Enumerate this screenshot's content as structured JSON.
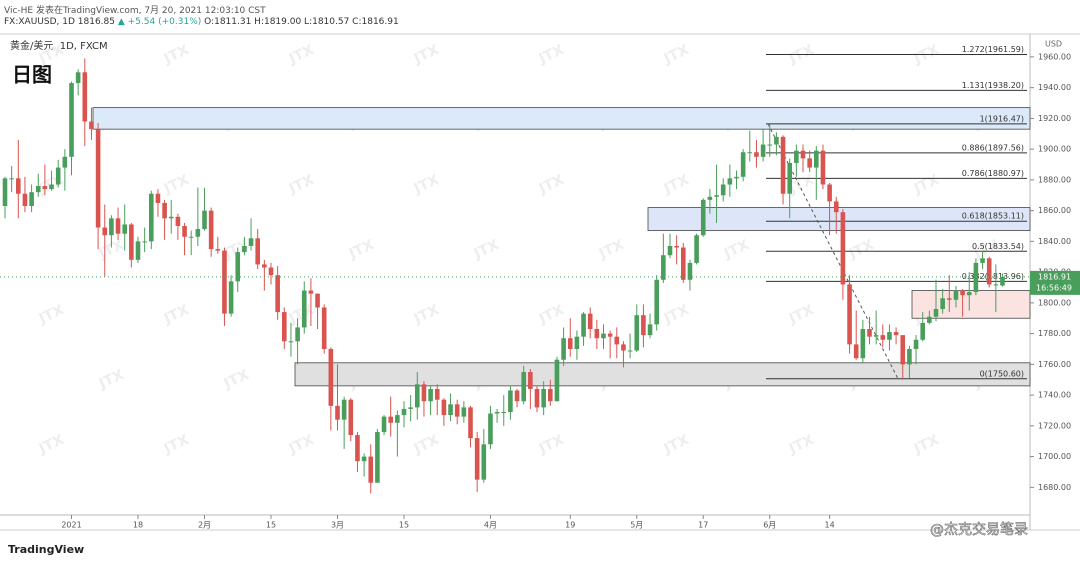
{
  "header": {
    "publisher": "Vic-HE 发表在TradingView.com, 7月 20, 2021 12:03:10 CST",
    "symbol": "FX:XAUUSD, 1D",
    "price": "1816.85",
    "change": "▲ +5.54 (+0.31%)",
    "ohlc": "O:1811.31 H:1819.00 L:1810.57 C:1816.91"
  },
  "footer": {
    "brand": "TradingView",
    "credit": "@杰克交易笔录"
  },
  "chart_data": {
    "type": "candlestick",
    "legend": "黄金/美元, 1D, FXCM",
    "tag": "日图",
    "watermark": "JTX",
    "currency": "USD",
    "up_color": "#4a9e5c",
    "down_color": "#d9534f",
    "ylim": [
      1662,
      1971
    ],
    "yticks": [
      {
        "value": 1680,
        "label": "1680.00"
      },
      {
        "value": 1700,
        "label": "1700.00"
      },
      {
        "value": 1720,
        "label": "1720.00"
      },
      {
        "value": 1740,
        "label": "1740.00"
      },
      {
        "value": 1760,
        "label": "1760.00"
      },
      {
        "value": 1780,
        "label": "1780.00"
      },
      {
        "value": 1800,
        "label": "1800.00"
      },
      {
        "value": 1820,
        "label": "1820.00"
      },
      {
        "value": 1840,
        "label": "1840.00"
      },
      {
        "value": 1860,
        "label": "1860.00"
      },
      {
        "value": 1880,
        "label": "1880.00"
      },
      {
        "value": 1900,
        "label": "1900.00"
      },
      {
        "value": 1920,
        "label": "1920.00"
      },
      {
        "value": 1940,
        "label": "1940.00"
      },
      {
        "value": 1960,
        "label": "1960.00"
      }
    ],
    "xticks": [
      {
        "value": 10,
        "label": "2021"
      },
      {
        "value": 20,
        "label": "18"
      },
      {
        "value": 30,
        "label": "2月"
      },
      {
        "value": 40,
        "label": "15"
      },
      {
        "value": 50,
        "label": "3月"
      },
      {
        "value": 60,
        "label": "15"
      },
      {
        "value": 73,
        "label": "4月"
      },
      {
        "value": 85,
        "label": "19"
      },
      {
        "value": 95,
        "label": "5月"
      },
      {
        "value": 105,
        "label": "17"
      },
      {
        "value": 115,
        "label": "6月"
      },
      {
        "value": 124,
        "label": "14"
      }
    ],
    "last_price": 1816.91,
    "countdown": "16:56:49",
    "zones": [
      {
        "range": [
          1913,
          1927
        ],
        "color": "#dbe9f8"
      },
      {
        "range": [
          1847,
          1862
        ],
        "color": "#dde6f8"
      },
      {
        "range": [
          1746,
          1761
        ],
        "color": "#e0e0e0"
      },
      {
        "range": [
          1790,
          1808
        ],
        "color": "#fbe3e1"
      }
    ],
    "fib": [
      {
        "value": 1961.59,
        "label": "1.272(1961.59)"
      },
      {
        "value": 1938.2,
        "label": "1.131(1938.20)"
      },
      {
        "value": 1916.47,
        "label": "1(1916.47)"
      },
      {
        "value": 1897.56,
        "label": "0.886(1897.56)"
      },
      {
        "value": 1880.97,
        "label": "0.786(1880.97)"
      },
      {
        "value": 1853.11,
        "label": "0.618(1853.11)"
      },
      {
        "value": 1833.54,
        "label": "0.5(1833.54)"
      },
      {
        "value": 1813.96,
        "label": "0.382(1813.96)"
      },
      {
        "value": 1750.6,
        "label": "0(1750.60)"
      }
    ],
    "ohlc": [
      [
        1863,
        1882,
        1855,
        1881
      ],
      [
        1881,
        1889,
        1872,
        1881
      ],
      [
        1881,
        1906,
        1855,
        1871
      ],
      [
        1871,
        1882,
        1859,
        1863
      ],
      [
        1863,
        1877,
        1859,
        1872
      ],
      [
        1872,
        1884,
        1869,
        1876
      ],
      [
        1876,
        1890,
        1870,
        1874
      ],
      [
        1874,
        1886,
        1873,
        1877
      ],
      [
        1877,
        1893,
        1875,
        1888
      ],
      [
        1888,
        1900,
        1873,
        1895
      ],
      [
        1895,
        1944,
        1883,
        1943
      ],
      [
        1943,
        1952,
        1935,
        1950
      ],
      [
        1950,
        1959,
        1902,
        1918
      ],
      [
        1918,
        1927,
        1906,
        1913
      ],
      [
        1913,
        1917,
        1835,
        1849
      ],
      [
        1849,
        1864,
        1817,
        1844
      ],
      [
        1844,
        1857,
        1836,
        1855
      ],
      [
        1855,
        1862,
        1841,
        1845
      ],
      [
        1845,
        1864,
        1834,
        1851
      ],
      [
        1851,
        1852,
        1823,
        1828
      ],
      [
        1828,
        1843,
        1826,
        1840
      ],
      [
        1840,
        1849,
        1833,
        1840
      ],
      [
        1840,
        1873,
        1835,
        1871
      ],
      [
        1871,
        1874,
        1856,
        1865
      ],
      [
        1865,
        1867,
        1841,
        1855
      ],
      [
        1855,
        1867,
        1845,
        1856
      ],
      [
        1856,
        1858,
        1841,
        1850
      ],
      [
        1850,
        1852,
        1831,
        1843
      ],
      [
        1843,
        1847,
        1831,
        1843
      ],
      [
        1843,
        1875,
        1837,
        1848
      ],
      [
        1848,
        1875,
        1847,
        1860
      ],
      [
        1860,
        1862,
        1830,
        1835
      ],
      [
        1835,
        1843,
        1832,
        1834
      ],
      [
        1834,
        1836,
        1785,
        1793
      ],
      [
        1793,
        1818,
        1791,
        1814
      ],
      [
        1814,
        1836,
        1807,
        1833
      ],
      [
        1833,
        1843,
        1831,
        1837
      ],
      [
        1837,
        1855,
        1834,
        1842
      ],
      [
        1842,
        1848,
        1822,
        1825
      ],
      [
        1825,
        1828,
        1808,
        1823
      ],
      [
        1823,
        1826,
        1812,
        1818
      ],
      [
        1818,
        1824,
        1789,
        1794
      ],
      [
        1794,
        1797,
        1770,
        1775
      ],
      [
        1775,
        1787,
        1765,
        1775
      ],
      [
        1775,
        1790,
        1760,
        1784
      ],
      [
        1784,
        1814,
        1780,
        1808
      ],
      [
        1808,
        1816,
        1785,
        1806
      ],
      [
        1806,
        1806,
        1783,
        1797
      ],
      [
        1797,
        1799,
        1767,
        1770
      ],
      [
        1770,
        1771,
        1717,
        1733
      ],
      [
        1733,
        1760,
        1717,
        1724
      ],
      [
        1724,
        1739,
        1705,
        1737
      ],
      [
        1737,
        1738,
        1710,
        1714
      ],
      [
        1714,
        1716,
        1690,
        1697
      ],
      [
        1697,
        1702,
        1687,
        1700
      ],
      [
        1700,
        1708,
        1676,
        1683
      ],
      [
        1683,
        1718,
        1683,
        1716
      ],
      [
        1716,
        1727,
        1714,
        1726
      ],
      [
        1726,
        1739,
        1713,
        1722
      ],
      [
        1722,
        1730,
        1700,
        1727
      ],
      [
        1727,
        1736,
        1719,
        1731
      ],
      [
        1731,
        1740,
        1723,
        1732
      ],
      [
        1732,
        1755,
        1724,
        1747
      ],
      [
        1747,
        1749,
        1726,
        1736
      ],
      [
        1736,
        1746,
        1727,
        1744
      ],
      [
        1744,
        1747,
        1727,
        1737
      ],
      [
        1737,
        1738,
        1720,
        1727
      ],
      [
        1727,
        1741,
        1723,
        1734
      ],
      [
        1734,
        1737,
        1721,
        1726
      ],
      [
        1726,
        1736,
        1722,
        1732
      ],
      [
        1732,
        1733,
        1706,
        1712
      ],
      [
        1712,
        1716,
        1677,
        1685
      ],
      [
        1685,
        1718,
        1683,
        1708
      ],
      [
        1708,
        1733,
        1705,
        1728
      ],
      [
        1728,
        1731,
        1722,
        1729
      ],
      [
        1729,
        1740,
        1720,
        1729
      ],
      [
        1729,
        1746,
        1724,
        1743
      ],
      [
        1743,
        1744,
        1732,
        1736
      ],
      [
        1736,
        1759,
        1734,
        1755
      ],
      [
        1755,
        1757,
        1731,
        1744
      ],
      [
        1744,
        1746,
        1729,
        1732
      ],
      [
        1732,
        1749,
        1727,
        1744
      ],
      [
        1744,
        1750,
        1733,
        1736
      ],
      [
        1736,
        1765,
        1736,
        1763
      ],
      [
        1763,
        1784,
        1759,
        1777
      ],
      [
        1777,
        1790,
        1765,
        1770
      ],
      [
        1770,
        1782,
        1763,
        1778
      ],
      [
        1778,
        1794,
        1772,
        1793
      ],
      [
        1793,
        1797,
        1777,
        1783
      ],
      [
        1783,
        1789,
        1770,
        1777
      ],
      [
        1777,
        1786,
        1770,
        1780
      ],
      [
        1780,
        1782,
        1764,
        1778
      ],
      [
        1778,
        1784,
        1764,
        1773
      ],
      [
        1773,
        1775,
        1758,
        1769
      ],
      [
        1769,
        1780,
        1764,
        1769
      ],
      [
        1769,
        1799,
        1768,
        1792
      ],
      [
        1792,
        1799,
        1771,
        1779
      ],
      [
        1779,
        1793,
        1777,
        1786
      ],
      [
        1786,
        1818,
        1782,
        1815
      ],
      [
        1815,
        1845,
        1813,
        1831
      ],
      [
        1831,
        1845,
        1829,
        1837
      ],
      [
        1837,
        1844,
        1825,
        1836
      ],
      [
        1836,
        1839,
        1813,
        1815
      ],
      [
        1815,
        1828,
        1808,
        1826
      ],
      [
        1826,
        1845,
        1825,
        1844
      ],
      [
        1844,
        1868,
        1843,
        1867
      ],
      [
        1867,
        1874,
        1858,
        1869
      ],
      [
        1869,
        1890,
        1852,
        1870
      ],
      [
        1870,
        1881,
        1866,
        1877
      ],
      [
        1877,
        1890,
        1869,
        1881
      ],
      [
        1881,
        1886,
        1874,
        1882
      ],
      [
        1882,
        1900,
        1879,
        1898
      ],
      [
        1898,
        1912,
        1892,
        1898
      ],
      [
        1898,
        1906,
        1888,
        1895
      ],
      [
        1895,
        1913,
        1892,
        1903
      ],
      [
        1903,
        1916,
        1895,
        1903
      ],
      [
        1903,
        1911,
        1896,
        1908
      ],
      [
        1908,
        1909,
        1864,
        1871
      ],
      [
        1871,
        1894,
        1855,
        1891
      ],
      [
        1891,
        1903,
        1882,
        1899
      ],
      [
        1899,
        1903,
        1885,
        1894
      ],
      [
        1894,
        1899,
        1885,
        1888
      ],
      [
        1888,
        1902,
        1867,
        1899
      ],
      [
        1899,
        1903,
        1874,
        1877
      ],
      [
        1877,
        1878,
        1844,
        1866
      ],
      [
        1866,
        1869,
        1845,
        1859
      ],
      [
        1859,
        1861,
        1802,
        1812
      ],
      [
        1812,
        1818,
        1767,
        1773
      ],
      [
        1773,
        1795,
        1763,
        1764
      ],
      [
        1764,
        1789,
        1761,
        1783
      ],
      [
        1783,
        1791,
        1773,
        1778
      ],
      [
        1778,
        1795,
        1773,
        1779
      ],
      [
        1779,
        1786,
        1771,
        1776
      ],
      [
        1776,
        1786,
        1769,
        1781
      ],
      [
        1781,
        1784,
        1773,
        1779
      ],
      [
        1779,
        1779,
        1750,
        1760
      ],
      [
        1760,
        1772,
        1751,
        1770
      ],
      [
        1770,
        1779,
        1760,
        1776
      ],
      [
        1776,
        1794,
        1775,
        1787
      ],
      [
        1787,
        1795,
        1786,
        1791
      ],
      [
        1791,
        1815,
        1788,
        1796
      ],
      [
        1796,
        1809,
        1793,
        1803
      ],
      [
        1803,
        1818,
        1794,
        1802
      ],
      [
        1802,
        1811,
        1797,
        1808
      ],
      [
        1808,
        1809,
        1791,
        1805
      ],
      [
        1805,
        1820,
        1795,
        1807
      ],
      [
        1807,
        1829,
        1805,
        1826
      ],
      [
        1826,
        1834,
        1822,
        1829
      ],
      [
        1829,
        1830,
        1810,
        1812
      ],
      [
        1812,
        1825,
        1794,
        1812
      ],
      [
        1811.31,
        1819,
        1810.57,
        1816.91
      ]
    ]
  }
}
